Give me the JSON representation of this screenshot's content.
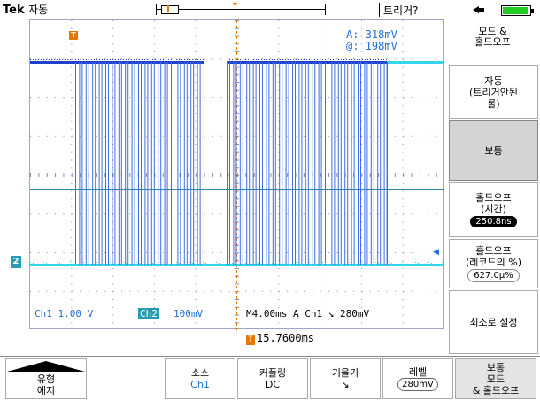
{
  "header": {
    "brand": "Tek",
    "mode": "자동",
    "trigger_status": "트리거?"
  },
  "readouts": {
    "a": "A:  318mV",
    "b": "@:  198mV"
  },
  "channel_bar": {
    "ch1": "Ch1  1.00 V",
    "ch2_tag": "Ch2",
    "ch2_scale": "100mV",
    "timebase": "M4.00ms  A  Ch1  ↘   280mV"
  },
  "trigger_time": "15.7600ms",
  "side_menu": {
    "title_line1": "모드 &",
    "title_line2": "홀드오프",
    "auto_line1": "자동",
    "auto_line2": "(트리거안된",
    "auto_line3": "롤)",
    "normal": "보통",
    "holdoff_time_line1": "홀드오프",
    "holdoff_time_line2": "(시간)",
    "holdoff_time_value": "250.8ns",
    "holdoff_pct_line1": "홀드오프",
    "holdoff_pct_line2": "(레코드의 %)",
    "holdoff_pct_value": "627.0μ%",
    "set_min": "최소로 설정"
  },
  "bottom_menu": {
    "type_line1": "유형",
    "type_line2": "에지",
    "source_label": "소스",
    "source_value": "Ch1",
    "coupling_label": "커플링",
    "coupling_value": "DC",
    "slope_label": "기울기",
    "slope_value": "↘",
    "level_label": "레벨",
    "level_value": "280mV",
    "mode_line1": "보통",
    "mode_line2": "모드",
    "mode_line3": "& 홀드오프"
  },
  "colors": {
    "ch1_trace": "#1f3fd1",
    "ch2_trace": "#33d6e8",
    "trigger": "#e87700",
    "readout_text": "#1f6fd1"
  }
}
